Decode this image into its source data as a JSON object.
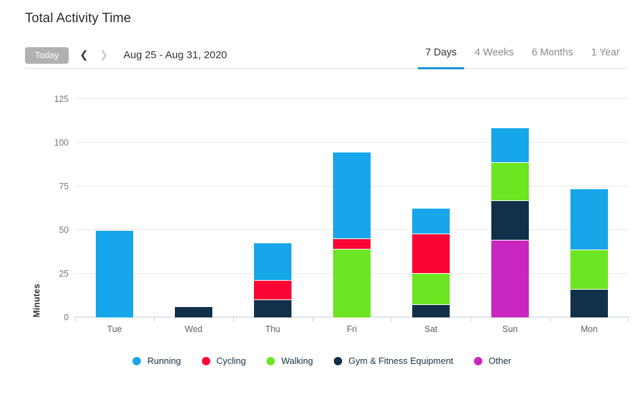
{
  "page": {
    "title": "Total Activity Time"
  },
  "toolbar": {
    "today_label": "Today",
    "prev_icon": "chevron-left-icon",
    "prev_glyph": "❮",
    "next_icon": "chevron-right-icon",
    "next_glyph": "❯",
    "date_range": "Aug 25 - Aug 31, 2020",
    "tabs": [
      {
        "label": "7 Days",
        "active": true
      },
      {
        "label": "4 Weeks",
        "active": false
      },
      {
        "label": "6 Months",
        "active": false
      },
      {
        "label": "1 Year",
        "active": false
      }
    ]
  },
  "chart_data": {
    "type": "bar",
    "stacked": true,
    "title": "Total Activity Time",
    "xlabel": "",
    "ylabel": "Minutes",
    "ylim": [
      0,
      125
    ],
    "yticks": [
      0,
      25,
      50,
      75,
      100,
      125
    ],
    "grid": true,
    "legend_position": "bottom",
    "categories": [
      "Tue",
      "Wed",
      "Thu",
      "Fri",
      "Sat",
      "Sun",
      "Mon"
    ],
    "stack_order": [
      "Other",
      "Gym & Fitness Equipment",
      "Walking",
      "Cycling",
      "Running"
    ],
    "series": [
      {
        "name": "Running",
        "color": "#17a6ea",
        "values": [
          49.5,
          0,
          21.5,
          49.5,
          15,
          20,
          35
        ]
      },
      {
        "name": "Cycling",
        "color": "#fc0535",
        "values": [
          0,
          0,
          11,
          6,
          22.5,
          0,
          0
        ]
      },
      {
        "name": "Walking",
        "color": "#6ce522",
        "values": [
          0,
          0,
          0,
          39,
          18,
          22,
          22.5
        ]
      },
      {
        "name": "Gym & Fitness Equipment",
        "color": "#12304a",
        "values": [
          0,
          6,
          10,
          0,
          7,
          22.5,
          16
        ]
      },
      {
        "name": "Other",
        "color": "#c827bf",
        "values": [
          0,
          0,
          0,
          0,
          0,
          44,
          0
        ]
      }
    ],
    "totals": {
      "Tue": 49.5,
      "Wed": 6,
      "Thu": 42.5,
      "Fri": 94.5,
      "Sat": 62.5,
      "Sun": 108.5,
      "Mon": 73.5
    }
  },
  "colors": {
    "accent_blue": "#1d8fd8",
    "gridline": "#e7e7e7",
    "axis_line": "#c6d0de",
    "legend_text": "#16324a",
    "today_button_bg": "#b1b1b1"
  }
}
